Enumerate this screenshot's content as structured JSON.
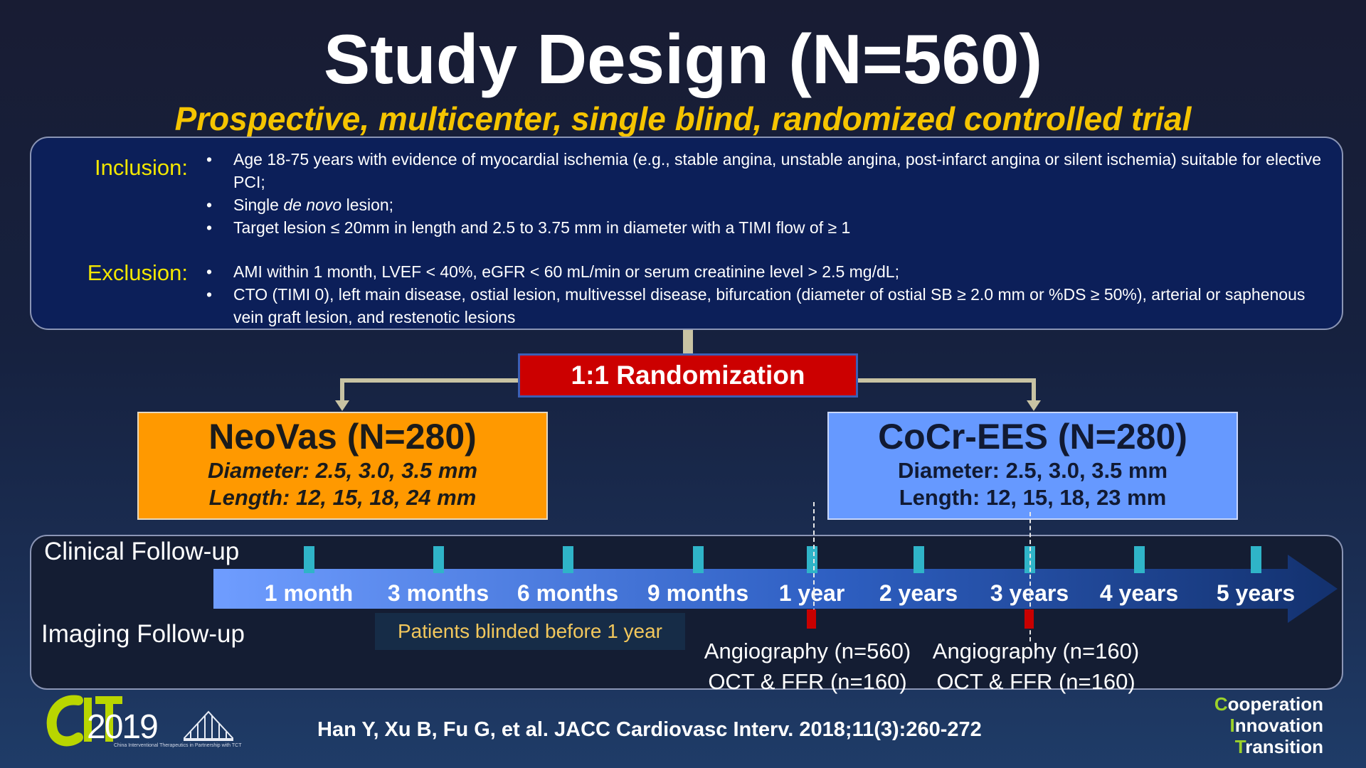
{
  "title": "Study Design (N=560)",
  "subtitle": "Prospective, multicenter, single blind, randomized controlled trial",
  "inclusion": {
    "label": "Inclusion:",
    "items": [
      "Age 18-75 years with evidence of myocardial ischemia (e.g., stable angina, unstable angina, post-infarct angina or silent ischemia) suitable for elective PCI;",
      "Target lesion ≤ 20mm in length and 2.5 to 3.75 mm in diameter with a TIMI flow of ≥ 1"
    ],
    "single_pre": "Single ",
    "single_em": "de novo",
    "single_post": " lesion;"
  },
  "exclusion": {
    "label": "Exclusion:",
    "items": [
      "AMI within 1 month, LVEF < 40%, eGFR < 60 mL/min or serum creatinine level > 2.5 mg/dL;",
      "CTO (TIMI 0), left main disease, ostial lesion, multivessel disease, bifurcation (diameter of ostial SB ≥ 2.0 mm or %DS ≥ 50%), arterial or saphenous vein graft lesion, and restenotic lesions"
    ]
  },
  "randomization": "1:1 Randomization",
  "arms": {
    "left": {
      "title": "NeoVas (N=280)",
      "diameter": "Diameter: 2.5, 3.0, 3.5 mm",
      "length": "Length: 12, 15, 18, 24 mm"
    },
    "right": {
      "title": "CoCr-EES (N=280)",
      "diameter": "Diameter: 2.5, 3.0, 3.5 mm",
      "length": "Length: 12, 15, 18, 23 mm"
    }
  },
  "followup": {
    "clinical_label": "Clinical Follow-up",
    "imaging_label": "Imaging Follow-up",
    "timepoints": [
      "1 month",
      "3 months",
      "6 months",
      "9 months",
      "1 year",
      "2 years",
      "3 years",
      "4 years",
      "5 years"
    ],
    "blinded_note": "Patients blinded before 1 year",
    "imaging": {
      "year1": {
        "angio": "Angiography (n=560)",
        "oct": "OCT & FFR (n=160)"
      },
      "year3": {
        "angio": "Angiography (n=160)",
        "oct": "OCT & FFR (n=160)"
      }
    }
  },
  "colors": {
    "accent_yellow": "#f5c400",
    "randomization_red": "#cc0000",
    "neovas_orange": "#ff9900",
    "cocr_blue": "#6699ff",
    "tick_teal": "#2fb4c8",
    "imaging_red": "#c80000"
  },
  "footer": {
    "logo_text": "2019",
    "logo_sub": "China Interventional Therapeutics in Partnership with TCT",
    "citation": "Han Y, Xu B, Fu G, et al. JACC Cardiovasc Interv. 2018;11(3):260-272",
    "tagline": [
      {
        "cap": "C",
        "rest": "ooperation"
      },
      {
        "cap": "I",
        "rest": "nnovation"
      },
      {
        "cap": "T",
        "rest": "ransition"
      }
    ]
  }
}
